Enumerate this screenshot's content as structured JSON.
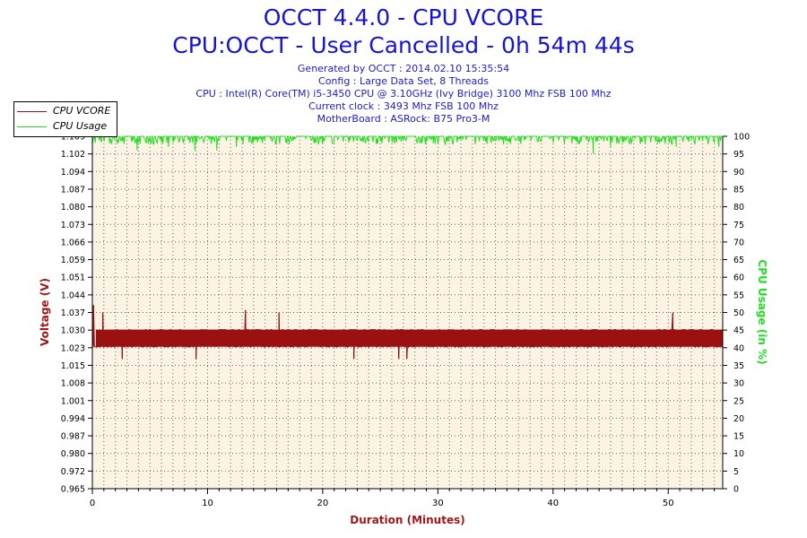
{
  "header": {
    "title": "OCCT 4.4.0 - CPU VCORE",
    "subtitle": "CPU:OCCT - User Cancelled - 0h 54m 44s",
    "info_lines": [
      "Generated by OCCT : 2014.02.10 15:35:54",
      "Config : Large Data Set, 8 Threads",
      "CPU : Intel(R) Core(TM) i5-3450 CPU @ 3.10GHz (Ivy Bridge) 3100 Mhz FSB 100 Mhz",
      "Current clock : 3493 Mhz FSB 100 Mhz",
      "MotherBoard : ASRock: B75 Pro3-M"
    ]
  },
  "colors": {
    "vcore": "#9b1111",
    "usage": "#22dd22",
    "plot_bg": "#fbf3e4",
    "grid": "#666666",
    "axis_title": "#a01818",
    "usage_axis_title": "#22dd22"
  },
  "chart_data": {
    "type": "line",
    "xlabel": "Duration (Minutes)",
    "ylabel": "Voltage (V)",
    "y2label": "CPU Usage (in %)",
    "xlim": [
      0,
      54.73
    ],
    "ylim": [
      0.965,
      1.109
    ],
    "y2lim": [
      0,
      100
    ],
    "x_ticks": [
      0,
      10,
      20,
      30,
      40,
      50
    ],
    "y_ticks": [
      "1.109",
      "1.102",
      "1.094",
      "1.087",
      "1.080",
      "1.073",
      "1.066",
      "1.059",
      "1.051",
      "1.044",
      "1.037",
      "1.030",
      "1.023",
      "1.015",
      "1.008",
      "1.001",
      "0.994",
      "0.987",
      "0.980",
      "0.972",
      "0.965"
    ],
    "y2_ticks": [
      100,
      95,
      90,
      85,
      80,
      75,
      70,
      65,
      60,
      55,
      50,
      45,
      40,
      35,
      30,
      25,
      20,
      15,
      10,
      5,
      0
    ],
    "grid": true,
    "legend_position": "top-left",
    "series": [
      {
        "name": "CPU VCORE",
        "axis": "left",
        "typical_low": 1.023,
        "typical_high": 1.03,
        "spikes": [
          {
            "x": 0.1,
            "y": 1.04
          },
          {
            "x": 0.9,
            "y": 1.037
          },
          {
            "x": 2.6,
            "y": 1.018
          },
          {
            "x": 9.0,
            "y": 1.018
          },
          {
            "x": 13.3,
            "y": 1.038
          },
          {
            "x": 16.2,
            "y": 1.037
          },
          {
            "x": 22.7,
            "y": 1.018
          },
          {
            "x": 26.6,
            "y": 1.018
          },
          {
            "x": 27.3,
            "y": 1.018
          },
          {
            "x": 50.4,
            "y": 1.037
          }
        ]
      },
      {
        "name": "CPU Usage",
        "axis": "right",
        "typical_value": 100,
        "dips": [
          {
            "x": 3.9,
            "y": 96
          },
          {
            "x": 6.6,
            "y": 97
          },
          {
            "x": 8.9,
            "y": 96
          },
          {
            "x": 10.8,
            "y": 96
          },
          {
            "x": 12.5,
            "y": 97
          },
          {
            "x": 16.9,
            "y": 98
          },
          {
            "x": 29.6,
            "y": 98
          },
          {
            "x": 43.5,
            "y": 95
          },
          {
            "x": 45.0,
            "y": 97
          },
          {
            "x": 50.7,
            "y": 97
          },
          {
            "x": 54.4,
            "y": 97
          }
        ]
      }
    ]
  }
}
